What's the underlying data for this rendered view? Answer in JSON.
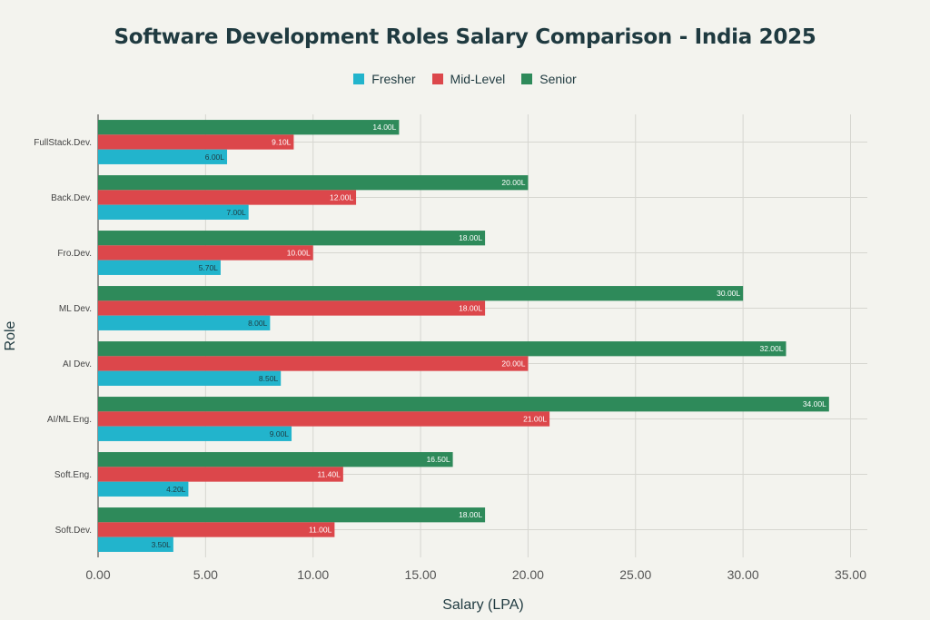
{
  "chart_data": {
    "type": "bar",
    "orientation": "horizontal",
    "title": "Software Development Roles Salary Comparison - India 2025",
    "xlabel": "Salary (LPA)",
    "ylabel": "Role",
    "xlim": [
      0,
      36
    ],
    "xticks": [
      "0.00",
      "5.00",
      "10.00",
      "15.00",
      "20.00",
      "25.00",
      "30.00",
      "35.00"
    ],
    "grid": true,
    "legend_position": "top-center",
    "categories": [
      "FullStack.Dev.",
      "Back.Dev.",
      "Fro.Dev.",
      "ML Dev.",
      "AI Dev.",
      "AI/ML Eng.",
      "Soft.Eng.",
      "Soft.Dev."
    ],
    "series": [
      {
        "name": "Fresher",
        "color": "#22b4cc",
        "label_color": "#1f3a40",
        "values": [
          6.0,
          7.0,
          5.7,
          8.0,
          8.5,
          9.0,
          4.2,
          3.5
        ],
        "labels": [
          "6.00L",
          "7.00L",
          "5.70L",
          "8.00L",
          "8.50L",
          "9.00L",
          "4.20L",
          "3.50L"
        ]
      },
      {
        "name": "Mid-Level",
        "color": "#dc474b",
        "label_color": "#ffffff",
        "values": [
          9.1,
          12.0,
          10.0,
          18.0,
          20.0,
          21.0,
          11.4,
          11.0
        ],
        "labels": [
          "9.10L",
          "12.00L",
          "10.00L",
          "18.00L",
          "20.00L",
          "21.00L",
          "11.40L",
          "11.00L"
        ]
      },
      {
        "name": "Senior",
        "color": "#2e8a5a",
        "label_color": "#ffffff",
        "values": [
          14.0,
          20.0,
          18.0,
          30.0,
          32.0,
          34.0,
          16.5,
          18.0
        ],
        "labels": [
          "14.00L",
          "20.00L",
          "18.00L",
          "30.00L",
          "32.00L",
          "34.00L",
          "16.50L",
          "18.00L"
        ]
      }
    ]
  }
}
